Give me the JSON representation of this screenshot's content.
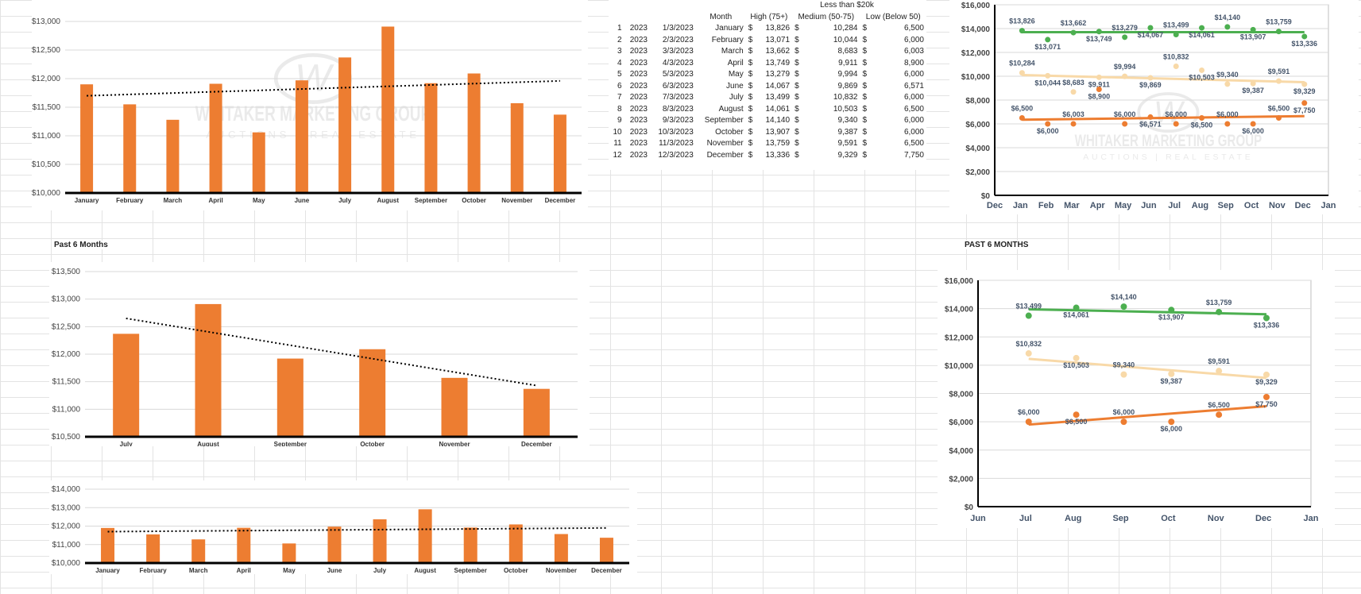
{
  "colors": {
    "bar": "#ED7D31",
    "high": "#4CAF50",
    "medium": "#F8D9A8",
    "low": "#ED7D31",
    "watermark": "#d9d9d9"
  },
  "watermark": {
    "name": "WHITAKER MARKETING GROUP",
    "sub": "AUCTIONS | REAL ESTATE"
  },
  "labels": {
    "past6_left": "Past 6 Months",
    "past6_right": "PAST 6 MONTHS"
  },
  "table": {
    "caption": "Less than $20k",
    "headers": [
      "Month",
      "High (75+)",
      "Medium (50-75)",
      "Low (Below 50)"
    ],
    "rows": [
      {
        "n": "1",
        "year": "2023",
        "date": "1/3/2023",
        "month": "January",
        "high": "13,826",
        "med": "10,284",
        "low": "6,500"
      },
      {
        "n": "2",
        "year": "2023",
        "date": "2/3/2023",
        "month": "February",
        "high": "13,071",
        "med": "10,044",
        "low": "6,000"
      },
      {
        "n": "3",
        "year": "2023",
        "date": "3/3/2023",
        "month": "March",
        "high": "13,662",
        "med": "8,683",
        "low": "6,003"
      },
      {
        "n": "4",
        "year": "2023",
        "date": "4/3/2023",
        "month": "April",
        "high": "13,749",
        "med": "9,911",
        "low": "8,900"
      },
      {
        "n": "5",
        "year": "2023",
        "date": "5/3/2023",
        "month": "May",
        "high": "13,279",
        "med": "9,994",
        "low": "6,000"
      },
      {
        "n": "6",
        "year": "2023",
        "date": "6/3/2023",
        "month": "June",
        "high": "14,067",
        "med": "9,869",
        "low": "6,571"
      },
      {
        "n": "7",
        "year": "2023",
        "date": "7/3/2023",
        "month": "July",
        "high": "13,499",
        "med": "10,832",
        "low": "6,000"
      },
      {
        "n": "8",
        "year": "2023",
        "date": "8/3/2023",
        "month": "August",
        "high": "14,061",
        "med": "10,503",
        "low": "6,500"
      },
      {
        "n": "9",
        "year": "2023",
        "date": "9/3/2023",
        "month": "September",
        "high": "14,140",
        "med": "9,340",
        "low": "6,000"
      },
      {
        "n": "10",
        "year": "2023",
        "date": "10/3/2023",
        "month": "October",
        "high": "13,907",
        "med": "9,387",
        "low": "6,000"
      },
      {
        "n": "11",
        "year": "2023",
        "date": "11/3/2023",
        "month": "November",
        "high": "13,759",
        "med": "9,591",
        "low": "6,500"
      },
      {
        "n": "12",
        "year": "2023",
        "date": "12/3/2023",
        "month": "December",
        "high": "13,336",
        "med": "9,329",
        "low": "7,750"
      }
    ]
  },
  "chart_data": [
    {
      "id": "bar-top",
      "type": "bar",
      "categories": [
        "January",
        "February",
        "March",
        "April",
        "May",
        "June",
        "July",
        "August",
        "September",
        "October",
        "November",
        "December"
      ],
      "values": [
        11900,
        11550,
        11280,
        11910,
        11060,
        11970,
        12370,
        12910,
        11920,
        12090,
        11570,
        11370
      ],
      "ylim": [
        10000,
        13000
      ],
      "yticks": [
        "$10,000",
        "$10,500",
        "$11,000",
        "$11,500",
        "$12,000",
        "$12,500",
        "$13,000"
      ],
      "trendline": [
        11700,
        11960
      ],
      "grid": true
    },
    {
      "id": "bar-past6",
      "type": "bar",
      "categories": [
        "July",
        "August",
        "September",
        "October",
        "November",
        "December"
      ],
      "values": [
        12370,
        12910,
        11920,
        12090,
        11570,
        11370
      ],
      "ylim": [
        10500,
        13500
      ],
      "yticks": [
        "$10,500",
        "$11,000",
        "$11,500",
        "$12,000",
        "$12,500",
        "$13,000",
        "$13,500"
      ],
      "trendline": [
        12650,
        11430
      ],
      "grid": true
    },
    {
      "id": "bar-bottom",
      "type": "bar",
      "categories": [
        "January",
        "February",
        "March",
        "April",
        "May",
        "June",
        "July",
        "August",
        "September",
        "October",
        "November",
        "December"
      ],
      "values": [
        11900,
        11550,
        11280,
        11910,
        11060,
        11970,
        12370,
        12910,
        11920,
        12090,
        11570,
        11370
      ],
      "ylim": [
        10000,
        14000
      ],
      "yticks": [
        "$10,000",
        "$11,000",
        "$12,000",
        "$13,000",
        "$14,000"
      ],
      "trendline": [
        11700,
        11900
      ],
      "grid": true
    },
    {
      "id": "scatter-year",
      "type": "scatter",
      "x": [
        "2023-01-03",
        "2023-02-03",
        "2023-03-03",
        "2023-04-03",
        "2023-05-03",
        "2023-06-03",
        "2023-07-03",
        "2023-08-03",
        "2023-09-03",
        "2023-10-03",
        "2023-11-03",
        "2023-12-03"
      ],
      "xticks": [
        "Dec",
        "Jan",
        "Feb",
        "Mar",
        "Apr",
        "May",
        "Jun",
        "Jul",
        "Aug",
        "Sep",
        "Oct",
        "Nov",
        "Dec",
        "Jan"
      ],
      "ylim": [
        0,
        16000
      ],
      "yticks": [
        "$0",
        "$2,000",
        "$4,000",
        "$6,000",
        "$8,000",
        "$10,000",
        "$12,000",
        "$14,000",
        "$16,000"
      ],
      "series": [
        {
          "key": "high",
          "values": [
            13826,
            13071,
            13662,
            13749,
            13279,
            14067,
            13499,
            14061,
            14140,
            13907,
            13759,
            13336
          ],
          "labels": [
            "$13,826",
            "$13,071",
            "$13,662",
            "$13,749",
            "$13,279",
            "$14,067",
            "$13,499",
            "$14,061",
            "$14,140",
            "$13,907",
            "$13,759",
            "$13,336"
          ],
          "trend": [
            13700,
            13700
          ]
        },
        {
          "key": "medium",
          "values": [
            10284,
            10044,
            8683,
            9911,
            9994,
            9869,
            10832,
            10503,
            9340,
            9387,
            9591,
            9329
          ],
          "labels": [
            "$10,284",
            "$10,044",
            "$8,683",
            "$9,911",
            "$9,994",
            "$9,869",
            "$10,832",
            "$10,503",
            "$9,340",
            "$9,387",
            "$9,591",
            "$9,329"
          ],
          "trend": [
            10100,
            9500
          ]
        },
        {
          "key": "low",
          "values": [
            6500,
            6000,
            6003,
            8900,
            6000,
            6571,
            6000,
            6500,
            6000,
            6000,
            6500,
            7750
          ],
          "labels": [
            "$6,500",
            "$6,000",
            "$6,003",
            "$8,900",
            "$6,000",
            "$6,571",
            "$6,000",
            "$6,500",
            "$6,000",
            "$6,000",
            "$6,500",
            "$7,750"
          ],
          "trend": [
            6350,
            6650
          ]
        }
      ]
    },
    {
      "id": "scatter-past6",
      "type": "scatter",
      "x": [
        "2023-07-03",
        "2023-08-03",
        "2023-09-03",
        "2023-10-03",
        "2023-11-03",
        "2023-12-03"
      ],
      "xticks": [
        "Jun",
        "Jul",
        "Aug",
        "Sep",
        "Oct",
        "Nov",
        "Dec",
        "Jan"
      ],
      "ylim": [
        0,
        16000
      ],
      "yticks": [
        "$0",
        "$2,000",
        "$4,000",
        "$6,000",
        "$8,000",
        "$10,000",
        "$12,000",
        "$14,000",
        "$16,000"
      ],
      "series": [
        {
          "key": "high",
          "values": [
            13499,
            14061,
            14140,
            13907,
            13759,
            13336
          ],
          "labels": [
            "$13,499",
            "$14,061",
            "$14,140",
            "$13,907",
            "$13,759",
            "$13,336"
          ],
          "trend": [
            13950,
            13600
          ]
        },
        {
          "key": "medium",
          "values": [
            10832,
            10503,
            9340,
            9387,
            9591,
            9329
          ],
          "labels": [
            "$10,832",
            "$10,503",
            "$9,340",
            "$9,387",
            "$9,591",
            "$9,329"
          ],
          "trend": [
            10450,
            9100
          ]
        },
        {
          "key": "low",
          "values": [
            6000,
            6500,
            6000,
            6000,
            6500,
            7750
          ],
          "labels": [
            "$6,000",
            "$6,500",
            "$6,000",
            "$6,000",
            "$6,500",
            "$7,750"
          ],
          "trend": [
            5800,
            7100
          ]
        }
      ]
    }
  ]
}
